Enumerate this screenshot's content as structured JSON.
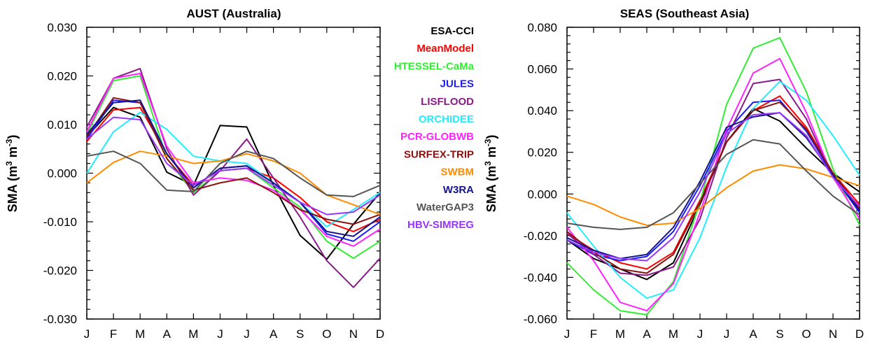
{
  "months": [
    "J",
    "F",
    "M",
    "A",
    "M",
    "J",
    "J",
    "A",
    "S",
    "O",
    "N",
    "D"
  ],
  "ylabel_prefix": "SMA (m",
  "ylabel_sup1": "3",
  "ylabel_mid": " m",
  "ylabel_sup2": "-3",
  "ylabel_suffix": ")",
  "legend": [
    {
      "name": "ESA-CCI",
      "color": "#000000"
    },
    {
      "name": "MeanModel",
      "color": "#ff0000"
    },
    {
      "name": "HTESSEL-CaMa",
      "color": "#33ee33"
    },
    {
      "name": "JULES",
      "color": "#1a1aff"
    },
    {
      "name": "LISFLOOD",
      "color": "#8b1a8b"
    },
    {
      "name": "ORCHIDEE",
      "color": "#22eeff"
    },
    {
      "name": "PCR-GLOBWB",
      "color": "#ff22ff"
    },
    {
      "name": "SURFEX-TRIP",
      "color": "#8b1010"
    },
    {
      "name": "SWBM",
      "color": "#ff8c00"
    },
    {
      "name": "W3RA",
      "color": "#15158b"
    },
    {
      "name": "WaterGAP3",
      "color": "#555555"
    },
    {
      "name": "HBV-SIMREG",
      "color": "#9a35ff"
    }
  ],
  "chart_data": [
    {
      "type": "line",
      "title": "AUST (Australia)",
      "categories": [
        "J",
        "F",
        "M",
        "A",
        "M",
        "J",
        "J",
        "A",
        "S",
        "O",
        "N",
        "D"
      ],
      "ylim": [
        -0.03,
        0.03
      ],
      "yticks": [
        -0.03,
        -0.02,
        -0.01,
        0.0,
        0.01,
        0.02,
        0.03
      ],
      "ytick_labels": [
        "-0.030",
        "-0.020",
        "-0.010",
        "0.000",
        "0.010",
        "0.020",
        "0.030"
      ],
      "ylabel": "SMA (m3 m-3)",
      "series": [
        {
          "name": "ESA-CCI",
          "color": "#000000",
          "values": [
            0.0075,
            0.0135,
            0.0115,
            0.0002,
            -0.0025,
            0.0098,
            0.0095,
            -0.0025,
            -0.0128,
            -0.0177,
            -0.0105,
            -0.004
          ]
        },
        {
          "name": "MeanModel",
          "color": "#ff0000",
          "values": [
            0.0065,
            0.013,
            0.0135,
            0.004,
            -0.0025,
            0.0005,
            0.001,
            -0.001,
            -0.005,
            -0.01,
            -0.012,
            -0.0095
          ]
        },
        {
          "name": "HTESSEL-CaMa",
          "color": "#33ee33",
          "values": [
            0.008,
            0.019,
            0.02,
            0.003,
            -0.004,
            0.0005,
            0.001,
            -0.003,
            -0.007,
            -0.014,
            -0.0175,
            -0.014
          ]
        },
        {
          "name": "JULES",
          "color": "#1a1aff",
          "values": [
            0.007,
            0.015,
            0.0145,
            0.004,
            -0.003,
            0.001,
            0.0015,
            -0.002,
            -0.006,
            -0.0125,
            -0.014,
            -0.01
          ]
        },
        {
          "name": "LISFLOOD",
          "color": "#8b1a8b",
          "values": [
            0.0095,
            0.0195,
            0.0215,
            0.005,
            -0.0045,
            0.0005,
            0.007,
            -0.001,
            -0.009,
            -0.018,
            -0.0235,
            -0.0175
          ]
        },
        {
          "name": "ORCHIDEE",
          "color": "#22eeff",
          "values": [
            0.0,
            0.0085,
            0.0125,
            0.009,
            0.0035,
            0.0025,
            0.002,
            -0.002,
            -0.006,
            -0.011,
            -0.0075,
            -0.004
          ]
        },
        {
          "name": "PCR-GLOBWB",
          "color": "#ff22ff",
          "values": [
            0.0085,
            0.0195,
            0.0205,
            0.0055,
            -0.002,
            -0.001,
            -0.0015,
            -0.0035,
            -0.0075,
            -0.013,
            -0.015,
            -0.0115
          ]
        },
        {
          "name": "SURFEX-TRIP",
          "color": "#8b1010",
          "values": [
            0.0075,
            0.0155,
            0.0145,
            0.003,
            -0.0035,
            -0.002,
            -0.001,
            -0.004,
            -0.0075,
            -0.0095,
            -0.0105,
            -0.0085
          ]
        },
        {
          "name": "SWBM",
          "color": "#ff8c00",
          "values": [
            -0.002,
            0.0022,
            0.0045,
            0.0035,
            0.002,
            0.0025,
            0.004,
            0.0025,
            0.0,
            -0.0045,
            -0.0065,
            -0.0085
          ]
        },
        {
          "name": "W3RA",
          "color": "#15158b",
          "values": [
            0.008,
            0.0145,
            0.015,
            0.004,
            -0.003,
            0.001,
            0.0015,
            -0.002,
            -0.006,
            -0.012,
            -0.013,
            -0.009
          ]
        },
        {
          "name": "WaterGAP3",
          "color": "#555555",
          "values": [
            0.0035,
            0.0045,
            0.002,
            -0.0035,
            -0.0038,
            0.002,
            0.0045,
            0.003,
            -0.001,
            -0.0045,
            -0.0048,
            -0.0025
          ]
        },
        {
          "name": "HBV-SIMREG",
          "color": "#9a35ff",
          "values": [
            0.007,
            0.0115,
            0.011,
            0.002,
            -0.0025,
            0.0005,
            0.001,
            -0.0025,
            -0.006,
            -0.0085,
            -0.008,
            -0.0045
          ]
        }
      ]
    },
    {
      "type": "line",
      "title": "SEAS (Southeast Asia)",
      "categories": [
        "J",
        "F",
        "M",
        "A",
        "M",
        "J",
        "J",
        "A",
        "S",
        "O",
        "N",
        "D"
      ],
      "ylim": [
        -0.06,
        0.08
      ],
      "yticks": [
        -0.06,
        -0.04,
        -0.02,
        0.0,
        0.02,
        0.04,
        0.06,
        0.08
      ],
      "ytick_labels": [
        "-0.060",
        "-0.040",
        "-0.020",
        "0.000",
        "0.020",
        "0.040",
        "0.060",
        "0.080"
      ],
      "ylabel": "SMA (m3 m-3)",
      "series": [
        {
          "name": "ESA-CCI",
          "color": "#000000",
          "values": [
            -0.022,
            -0.031,
            -0.036,
            -0.041,
            -0.033,
            -0.005,
            0.025,
            0.041,
            0.035,
            0.022,
            0.01,
            0.001
          ]
        },
        {
          "name": "MeanModel",
          "color": "#ff0000",
          "values": [
            -0.019,
            -0.027,
            -0.033,
            -0.036,
            -0.028,
            -0.003,
            0.025,
            0.04,
            0.047,
            0.032,
            0.01,
            -0.005
          ]
        },
        {
          "name": "HTESSEL-CaMa",
          "color": "#33ee33",
          "values": [
            -0.033,
            -0.046,
            -0.056,
            -0.058,
            -0.042,
            -0.004,
            0.043,
            0.07,
            0.075,
            0.049,
            0.012,
            -0.015
          ]
        },
        {
          "name": "JULES",
          "color": "#1a1aff",
          "values": [
            -0.022,
            -0.029,
            -0.032,
            -0.03,
            -0.018,
            0.004,
            0.03,
            0.044,
            0.045,
            0.03,
            0.009,
            -0.009
          ]
        },
        {
          "name": "LISFLOOD",
          "color": "#8b1a8b",
          "values": [
            -0.019,
            -0.029,
            -0.038,
            -0.039,
            -0.035,
            -0.012,
            0.027,
            0.053,
            0.055,
            0.036,
            0.008,
            -0.007
          ]
        },
        {
          "name": "ORCHIDEE",
          "color": "#22eeff",
          "values": [
            -0.009,
            -0.025,
            -0.04,
            -0.05,
            -0.046,
            -0.021,
            0.013,
            0.041,
            0.054,
            0.045,
            0.028,
            0.009
          ]
        },
        {
          "name": "PCR-GLOBWB",
          "color": "#ff22ff",
          "values": [
            -0.016,
            -0.032,
            -0.052,
            -0.056,
            -0.043,
            -0.009,
            0.031,
            0.058,
            0.065,
            0.039,
            0.008,
            -0.012
          ]
        },
        {
          "name": "SURFEX-TRIP",
          "color": "#8b1010",
          "values": [
            -0.018,
            -0.028,
            -0.036,
            -0.038,
            -0.029,
            -0.004,
            0.025,
            0.04,
            0.044,
            0.031,
            0.01,
            -0.007
          ]
        },
        {
          "name": "SWBM",
          "color": "#ff8c00",
          "values": [
            -0.001,
            -0.005,
            -0.011,
            -0.015,
            -0.014,
            -0.007,
            0.003,
            0.011,
            0.014,
            0.012,
            0.008,
            0.004
          ]
        },
        {
          "name": "W3RA",
          "color": "#15158b",
          "values": [
            -0.021,
            -0.027,
            -0.031,
            -0.029,
            -0.016,
            0.006,
            0.032,
            0.037,
            0.039,
            0.027,
            0.009,
            -0.008
          ]
        },
        {
          "name": "WaterGAP3",
          "color": "#555555",
          "values": [
            -0.014,
            -0.016,
            -0.017,
            -0.016,
            -0.009,
            0.005,
            0.019,
            0.026,
            0.024,
            0.011,
            -0.001,
            -0.01
          ]
        },
        {
          "name": "HBV-SIMREG",
          "color": "#9a35ff",
          "values": [
            -0.022,
            -0.028,
            -0.031,
            -0.032,
            -0.021,
            0.001,
            0.029,
            0.038,
            0.039,
            0.028,
            0.008,
            -0.006
          ]
        }
      ]
    }
  ]
}
